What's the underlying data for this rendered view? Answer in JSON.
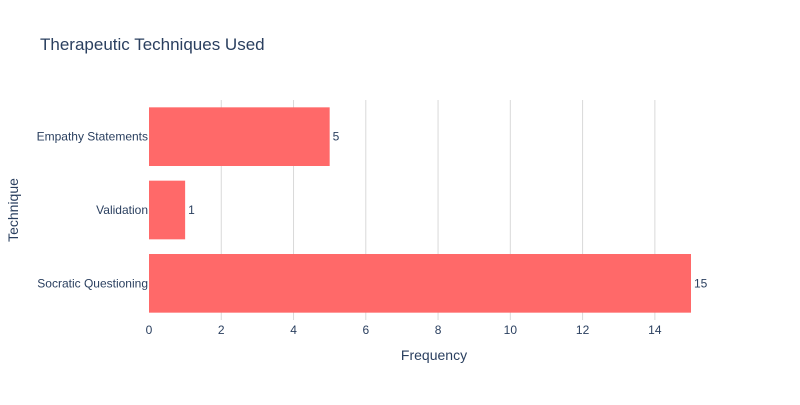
{
  "chart_data": {
    "type": "bar",
    "orientation": "horizontal",
    "title": "Therapeutic Techniques Used",
    "xlabel": "Frequency",
    "ylabel": "Technique",
    "categories": [
      "Empathy Statements",
      "Validation",
      "Socratic Questioning"
    ],
    "values": [
      5,
      1,
      15
    ],
    "xlim": [
      0,
      15
    ],
    "xticks": [
      0,
      2,
      4,
      6,
      8,
      10,
      12,
      14
    ],
    "grid": true,
    "legend": "none",
    "bar_color": "#ff6969"
  }
}
